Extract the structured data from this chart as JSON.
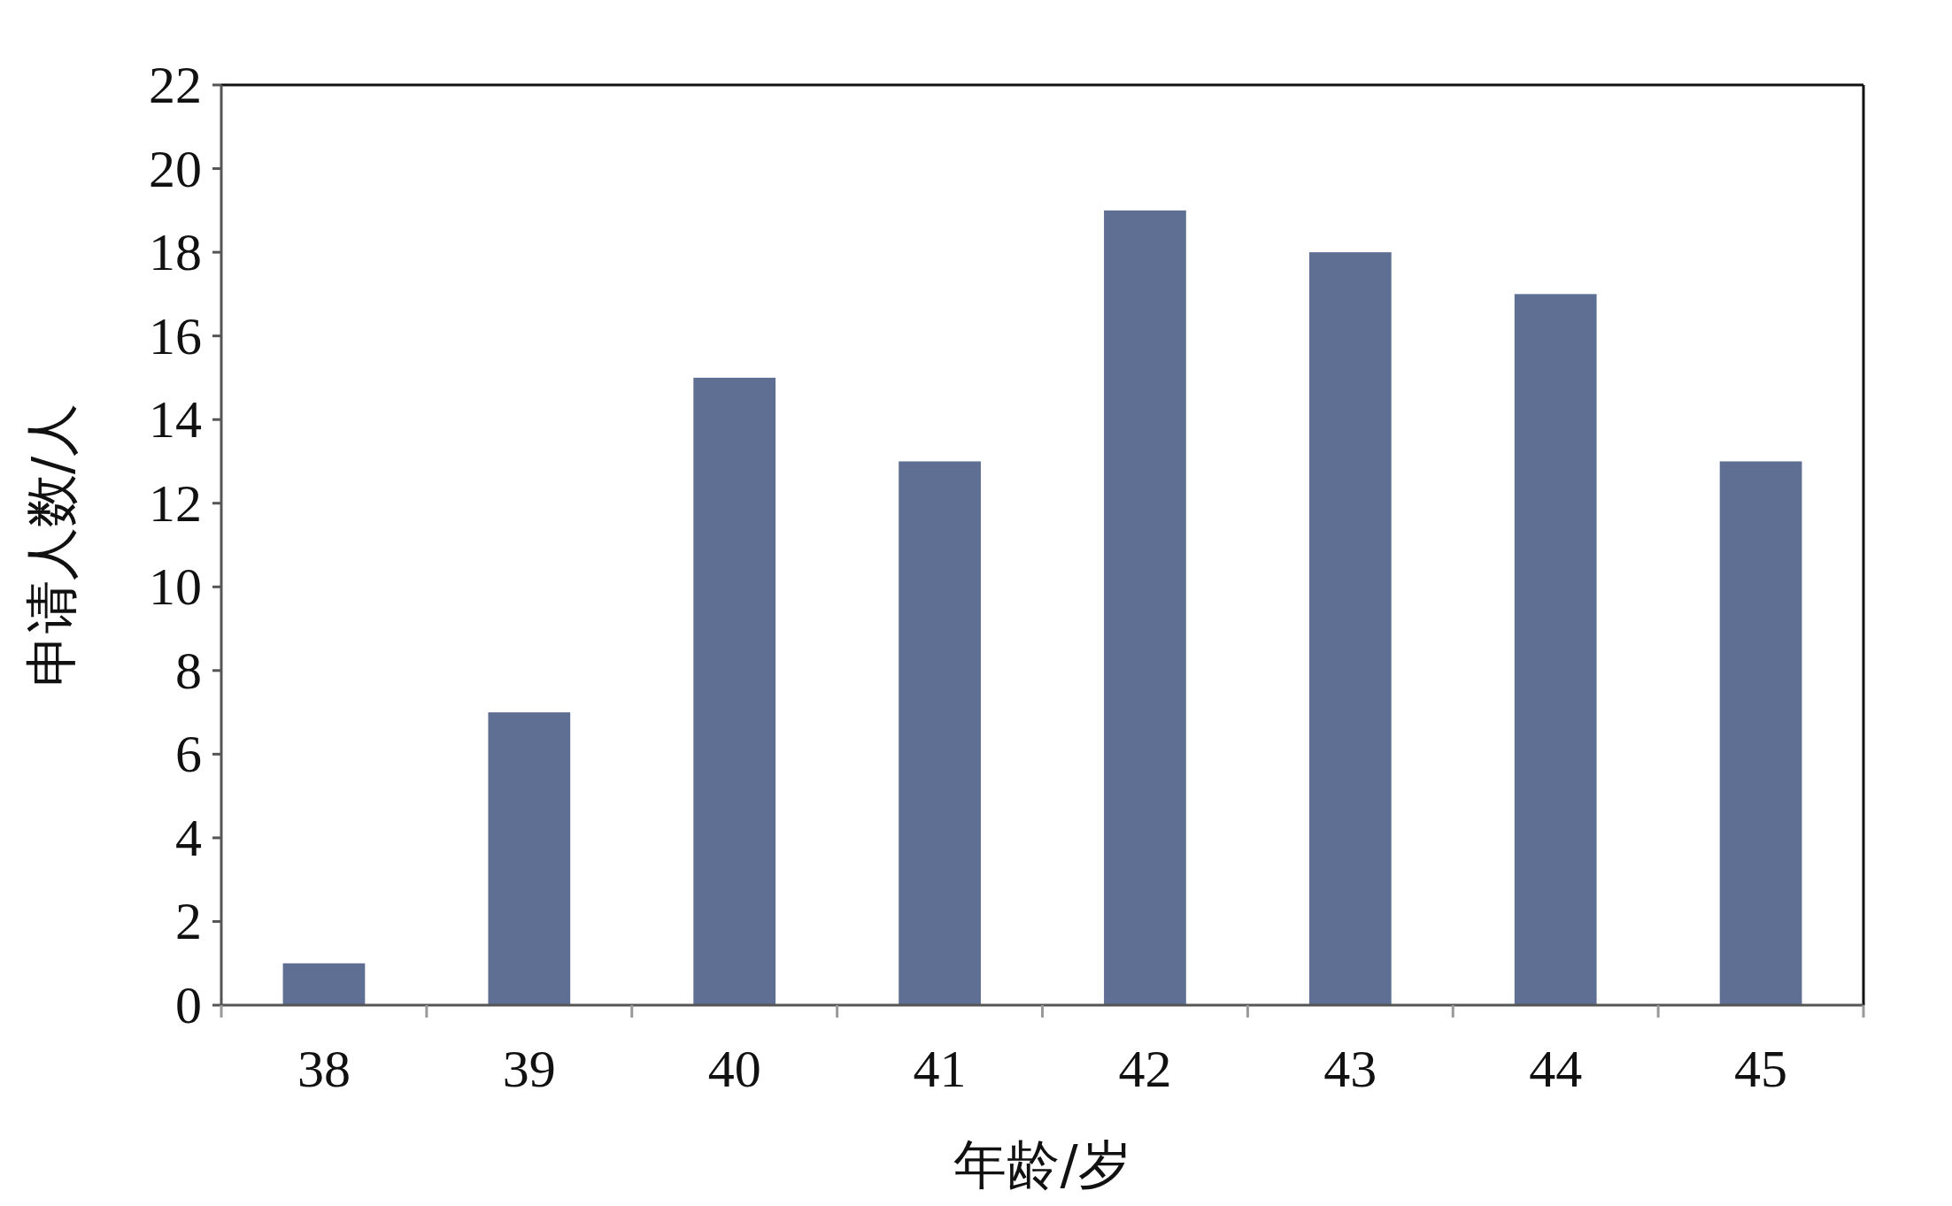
{
  "chart_data": {
    "type": "bar",
    "xlabel": "年龄/岁",
    "ylabel": "申请人数/人",
    "categories": [
      "38",
      "39",
      "40",
      "41",
      "42",
      "43",
      "44",
      "45"
    ],
    "values": [
      1,
      7,
      15,
      13,
      19,
      18,
      17,
      13
    ],
    "color": "#5f6f93",
    "ylim": [
      0,
      22
    ],
    "yticks": [
      0,
      2,
      4,
      6,
      8,
      10,
      12,
      14,
      16,
      18,
      20,
      22
    ],
    "grid": false
  }
}
